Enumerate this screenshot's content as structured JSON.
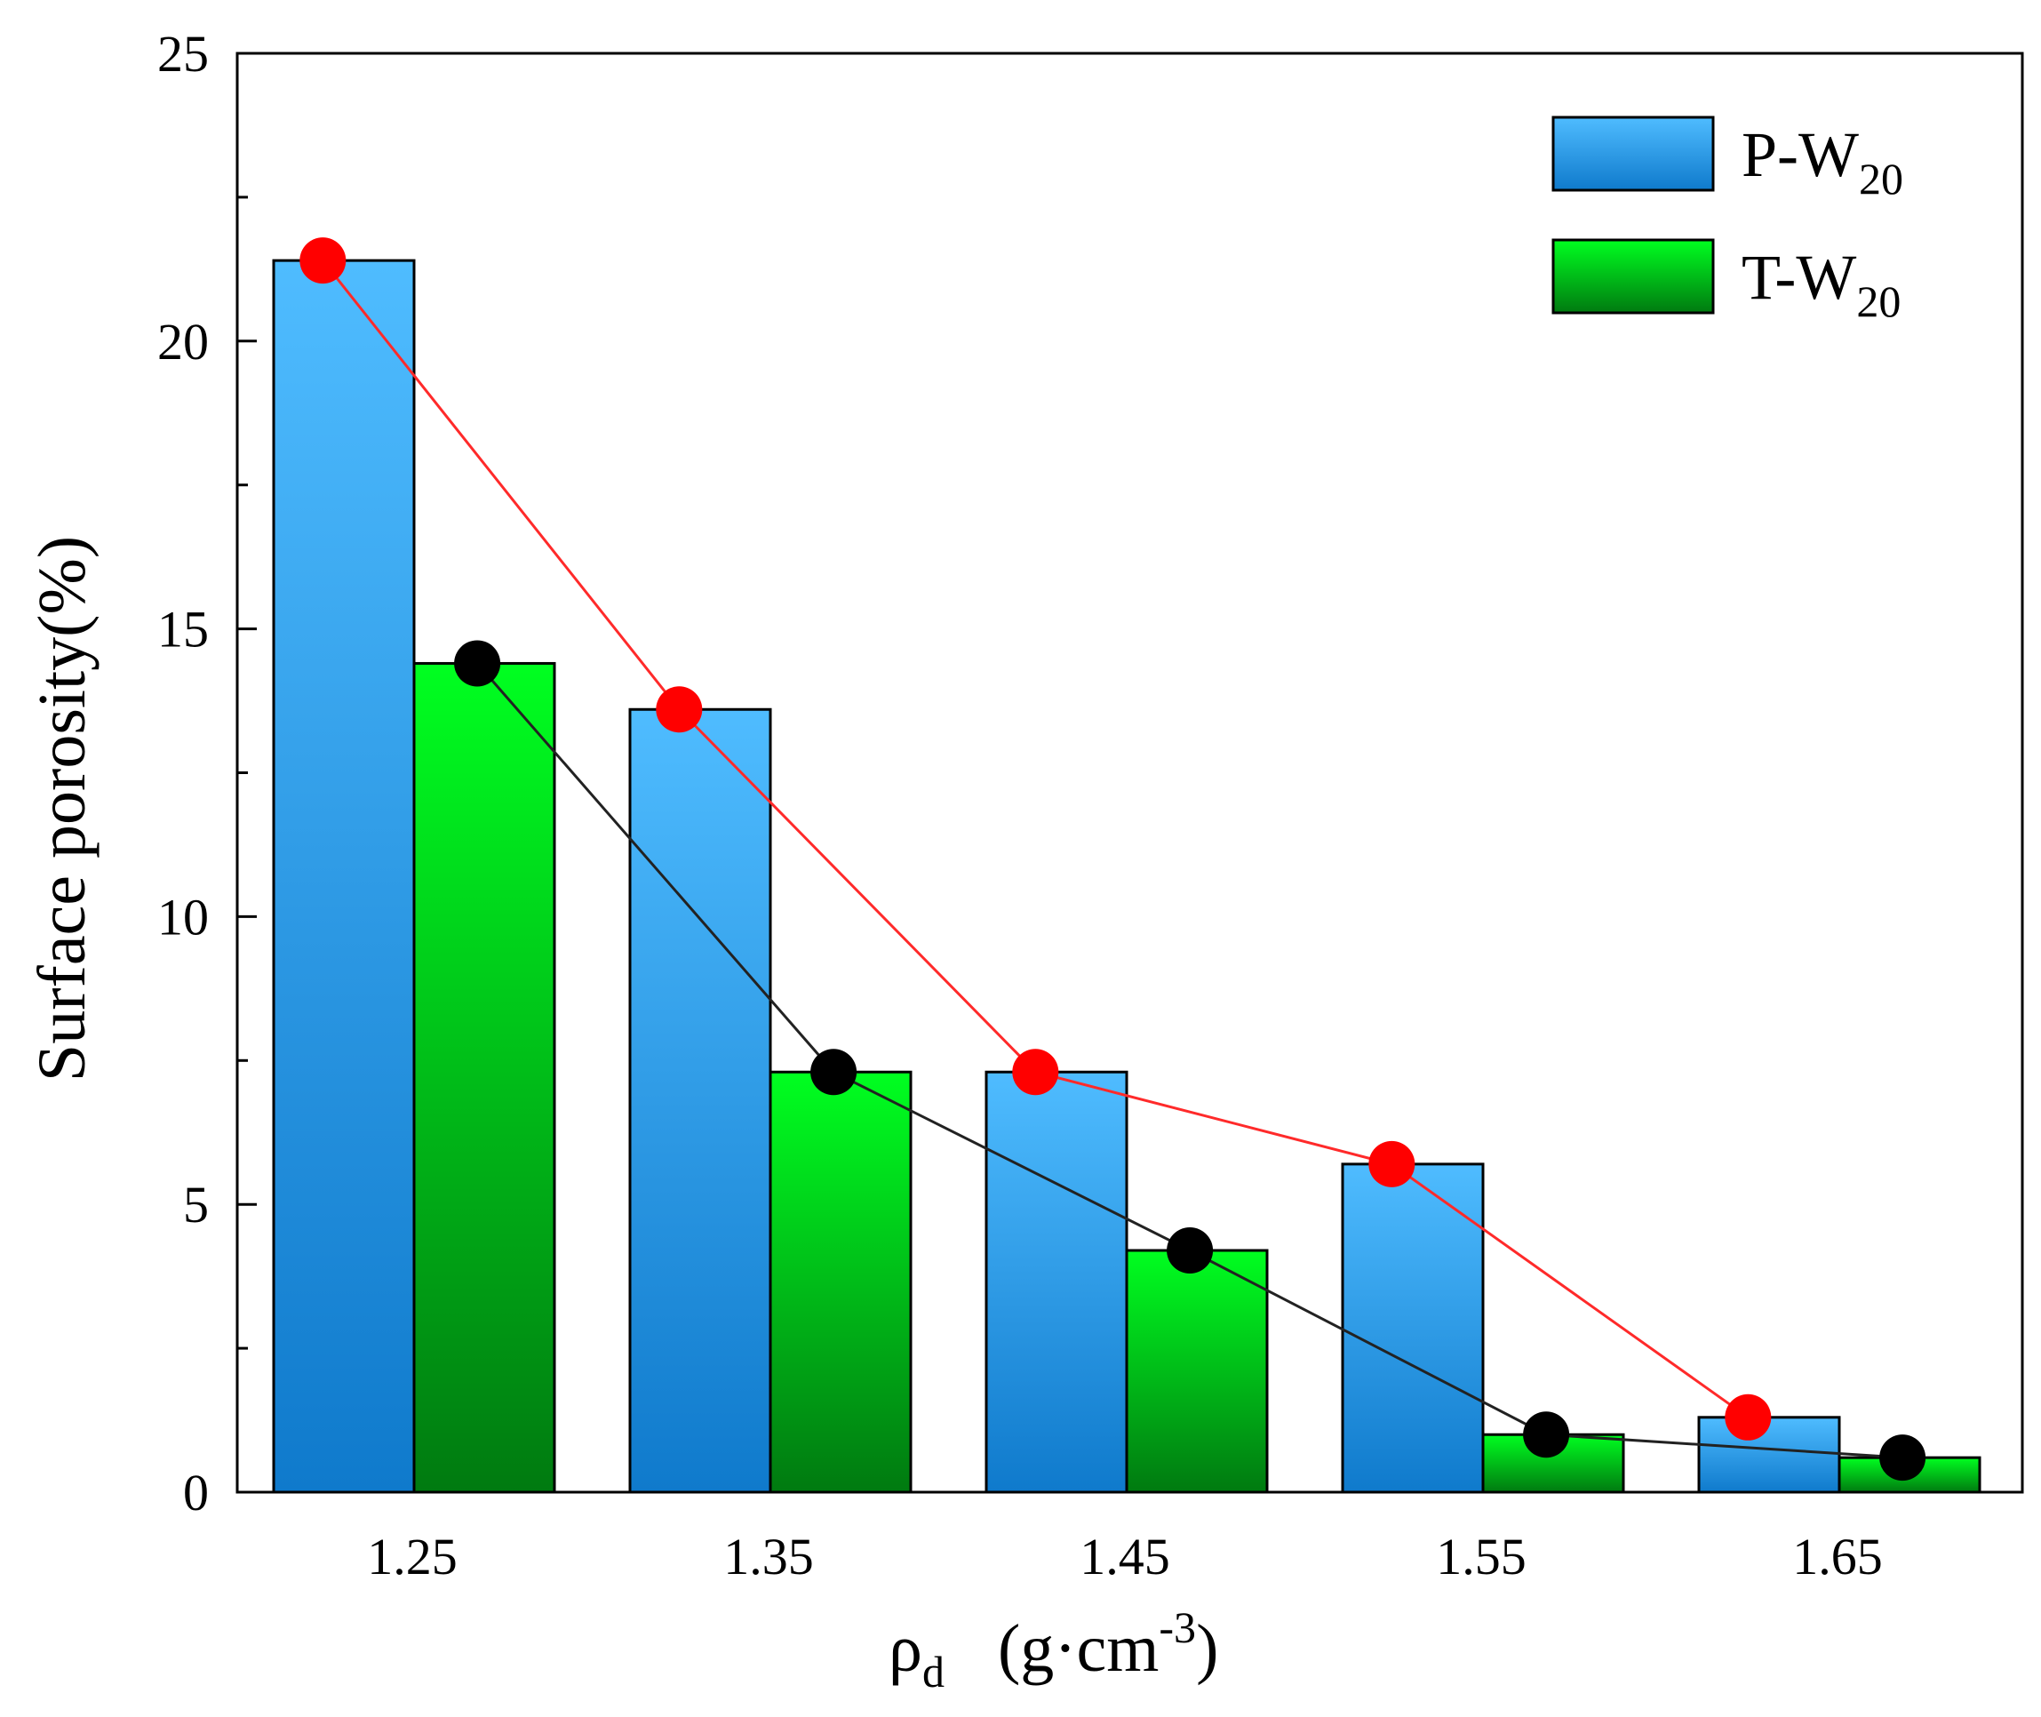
{
  "chart_data": {
    "type": "bar",
    "title": "",
    "xlabel": {
      "symbol": "ρ",
      "sub": "d",
      "unit_prefix": "(g·cm",
      "sup": "-3",
      "unit_suffix": ")"
    },
    "ylabel": "Surface porosity(%)",
    "ylim": [
      0,
      25
    ],
    "yticks": [
      "0",
      "5",
      "10",
      "15",
      "20",
      "25"
    ],
    "categories": [
      "1.25",
      "1.35",
      "1.45",
      "1.55",
      "1.65"
    ],
    "series": [
      {
        "name": "P-W",
        "sub": "20",
        "values": [
          21.4,
          13.6,
          7.3,
          5.7,
          1.3
        ],
        "colors": {
          "top": "#4fbcff",
          "bottom": "#0f7acc"
        },
        "line_color": "#ff2a2a",
        "marker_color": "#ff0000"
      },
      {
        "name": "T-W",
        "sub": "20",
        "values": [
          14.4,
          7.3,
          4.2,
          1.0,
          0.6
        ],
        "colors": {
          "top": "#00ff20",
          "bottom": "#007a10"
        },
        "line_color": "#222222",
        "marker_color": "#000000"
      }
    ],
    "legend_position": "top-right",
    "grid": false
  }
}
